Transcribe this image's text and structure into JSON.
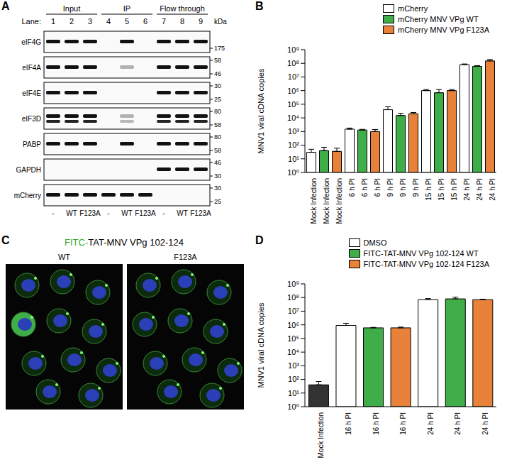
{
  "panel_labels": [
    "A",
    "B",
    "C",
    "D"
  ],
  "panel_a": {
    "groups": [
      "Input",
      "IP",
      "Flow through"
    ],
    "lane_title": "Lane:",
    "lanes": [
      1,
      2,
      3,
      4,
      5,
      6,
      7,
      8,
      9
    ],
    "unit": "kDa",
    "rows": [
      {
        "name": "eIF4G",
        "bands": [
          1,
          1,
          1,
          0,
          1,
          0,
          1,
          1,
          1
        ],
        "markers": [
          175
        ]
      },
      {
        "name": "eIF4A",
        "bands": [
          1,
          1,
          1,
          0,
          0.3,
          0,
          1,
          1,
          1
        ],
        "markers": [
          58,
          46
        ]
      },
      {
        "name": "eIF4E",
        "bands": [
          1,
          1,
          1,
          0,
          0,
          0,
          1,
          1,
          1
        ],
        "markers": [
          30,
          25
        ]
      },
      {
        "name": "eIF3D",
        "bands": [
          1,
          1,
          1,
          0,
          0.3,
          0,
          1,
          1,
          1
        ],
        "markers": [
          80,
          58
        ]
      },
      {
        "name": "PABP",
        "bands": [
          1,
          1,
          1,
          0,
          1,
          0,
          1,
          1,
          1
        ],
        "markers": [
          80,
          58
        ]
      },
      {
        "name": "GAPDH",
        "bands": [
          0,
          0,
          0,
          0,
          0,
          0,
          1,
          1,
          1
        ],
        "markers": [
          46,
          30
        ]
      },
      {
        "name": "mCherry",
        "bands": [
          1,
          1,
          1,
          1,
          1,
          1,
          0,
          0,
          0
        ],
        "markers": [
          30,
          25
        ]
      }
    ],
    "lane_labels": [
      "-",
      "WT",
      "F123A",
      "-",
      "WT",
      "F123A",
      "-",
      "WT",
      "F123A"
    ]
  },
  "panel_c": {
    "title": "FITC-TAT-MNV VPg 102-124",
    "images": [
      "WT",
      "F123A"
    ]
  },
  "chart_data": [
    {
      "type": "bar",
      "y_label": "MNV1 viral cDNA copies",
      "log": "y",
      "legend": "upper right",
      "ylim": [
        1,
        1000000000
      ],
      "yticks": [
        {
          "value": 1,
          "label": "10⁰"
        },
        {
          "value": 10,
          "label": "10¹"
        },
        {
          "value": 100,
          "label": "10²"
        },
        {
          "value": 1000,
          "label": "10³"
        },
        {
          "value": 10000,
          "label": "10⁴"
        },
        {
          "value": 100000,
          "label": "10⁵"
        },
        {
          "value": 1000000,
          "label": "10⁶"
        },
        {
          "value": 10000000,
          "label": "10⁷"
        },
        {
          "value": 100000000,
          "label": "10⁸"
        },
        {
          "value": 1000000000,
          "label": "10⁹"
        }
      ],
      "categories": [
        "Mock Infection",
        "Mock Infection",
        "Mock Infection",
        "6 h PI",
        "6 h PI",
        "6 h PI",
        "9 h PI",
        "9 h PI",
        "9 h PI",
        "15 h PI",
        "15 h PI",
        "15 h PI",
        "24 h PI",
        "24 h PI",
        "24 h PI"
      ],
      "series": [
        {
          "name": "mCherry",
          "color": "#ffffff",
          "values": [
            30,
            null,
            null,
            1500,
            null,
            null,
            40000,
            null,
            null,
            1000000,
            null,
            null,
            80000000,
            null,
            null
          ],
          "errors": [
            20,
            null,
            null,
            300,
            null,
            null,
            25000,
            null,
            null,
            200000,
            null,
            null,
            10000000,
            null,
            null
          ]
        },
        {
          "name": "mCherry MNV VPg WT",
          "color": "#3fae49",
          "values": [
            null,
            40,
            null,
            null,
            1300,
            null,
            null,
            15000,
            null,
            null,
            700000,
            null,
            null,
            60000000,
            null
          ],
          "errors": [
            null,
            30,
            null,
            null,
            150,
            null,
            null,
            7000,
            null,
            null,
            500000,
            null,
            null,
            8000000,
            null
          ]
        },
        {
          "name": "mCherry MNV VPg F123A",
          "color": "#e8823a",
          "values": [
            null,
            null,
            35,
            null,
            null,
            1000,
            null,
            null,
            20000,
            null,
            null,
            1000000,
            null,
            null,
            150000000
          ],
          "errors": [
            null,
            null,
            25,
            null,
            null,
            400,
            null,
            null,
            5000,
            null,
            null,
            200000,
            null,
            null,
            40000000
          ]
        }
      ]
    },
    {
      "type": "bar",
      "y_label": "MNV1 viral cDNA copies",
      "log": "y",
      "legend": "upper right",
      "ylim": [
        1,
        1000000000
      ],
      "yticks": [
        {
          "value": 1,
          "label": "10⁰"
        },
        {
          "value": 10,
          "label": "10¹"
        },
        {
          "value": 100,
          "label": "10²"
        },
        {
          "value": 1000,
          "label": "10³"
        },
        {
          "value": 10000,
          "label": "10⁴"
        },
        {
          "value": 100000,
          "label": "10⁵"
        },
        {
          "value": 1000000,
          "label": "10⁶"
        },
        {
          "value": 10000000,
          "label": "10⁷"
        },
        {
          "value": 100000000,
          "label": "10⁸"
        },
        {
          "value": 1000000000,
          "label": "10⁹"
        }
      ],
      "categories": [
        "Mock Infection",
        "16 h PI",
        "16 h PI",
        "16 h PI",
        "24 h PI",
        "24 h PI",
        "24 h PI"
      ],
      "series": [
        {
          "color": "#333333",
          "values": [
            40,
            null,
            null,
            null,
            null,
            null,
            null
          ],
          "errors": [
            30,
            null,
            null,
            null,
            null,
            null,
            null
          ]
        },
        {
          "name": "DMSO",
          "color": "#ffffff",
          "values": [
            null,
            900000,
            null,
            null,
            70000000,
            null,
            null
          ],
          "errors": [
            null,
            400000,
            null,
            null,
            15000000,
            null,
            null
          ]
        },
        {
          "name": "FITC-TAT-MNV VPg 102-124 WT",
          "color": "#3fae49",
          "values": [
            null,
            null,
            600000,
            null,
            null,
            80000000,
            null
          ],
          "errors": [
            null,
            null,
            50000,
            null,
            null,
            25000000,
            null
          ]
        },
        {
          "name": "FITC-TAT-MNV VPg 102-124 F123A",
          "color": "#e8823a",
          "values": [
            null,
            null,
            null,
            600000,
            null,
            null,
            70000000
          ],
          "errors": [
            null,
            null,
            null,
            80000,
            null,
            null,
            5000000
          ]
        }
      ]
    }
  ]
}
